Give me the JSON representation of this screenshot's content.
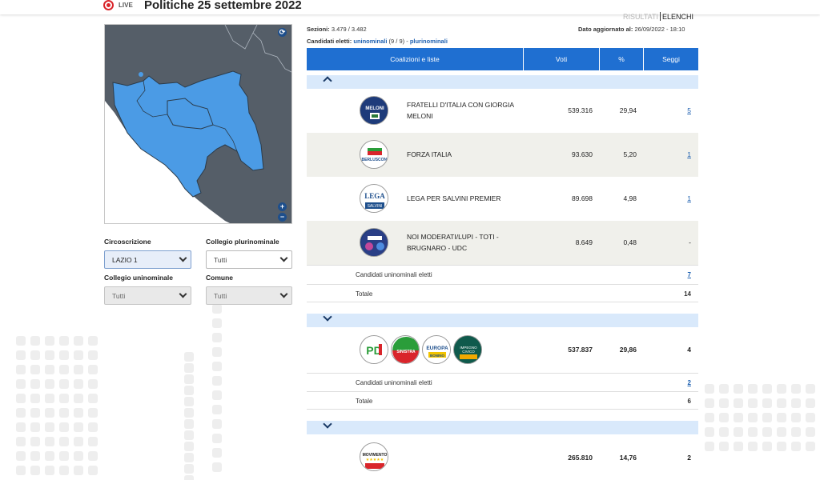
{
  "header": {
    "live_label": "LIVE",
    "title": "Politiche 25 settembre 2022"
  },
  "tabs": {
    "results": "RISULTATI",
    "lists": "ELENCHI"
  },
  "meta": {
    "sezioni_label": "Sezioni:",
    "sezioni_value": "3.479 / 3.482",
    "updated_label": "Dato aggiornato al:",
    "updated_value": "26/09/2022 - 18:10",
    "elected_label": "Candidati eletti:",
    "uninominali": "uninominali",
    "uninominali_count": "(9 / 9) -",
    "plurinominali": "plurinominali"
  },
  "filters": {
    "circoscrizione_label": "Circoscrizione",
    "circoscrizione_value": "LAZIO 1",
    "plurinominale_label": "Collegio plurinominale",
    "plurinominale_value": "Tutti",
    "uninominale_label": "Collegio uninominale",
    "uninominale_value": "Tutti",
    "comune_label": "Comune",
    "comune_value": "Tutti"
  },
  "table": {
    "headers": [
      "Coalizioni e liste",
      "Voti",
      "%",
      "Seggi"
    ],
    "groups": [
      {
        "expanded": true,
        "rows": [
          {
            "name": "FRATELLI D'ITALIA CON GIORGIA MELONI",
            "logo": "fdi-logo",
            "voti": "539.316",
            "pct": "29,94",
            "seggi": "5"
          },
          {
            "name": "FORZA ITALIA",
            "logo": "forza-italia-logo",
            "voti": "93.630",
            "pct": "5,20",
            "seggi": "1"
          },
          {
            "name": "LEGA PER SALVINI PREMIER",
            "logo": "lega-logo",
            "voti": "89.698",
            "pct": "4,98",
            "seggi": "1"
          },
          {
            "name": "NOI MODERATI/LUPI - TOTI - BRUGNARO - UDC",
            "logo": "noi-moderati-logo",
            "voti": "8.649",
            "pct": "0,48",
            "seggi": "-"
          }
        ],
        "uninominali_label": "Candidati uninominali eletti",
        "uninominali_value": "7",
        "totale_label": "Totale",
        "totale_value": "14"
      },
      {
        "expanded": false,
        "voti": "537.837",
        "pct": "29,86",
        "seggi": "4",
        "logos": [
          "pd-logo",
          "verdi-sinistra-logo",
          "piu-europa-logo",
          "impegno-civico-logo"
        ],
        "uninominali_label": "Candidati uninominali eletti",
        "uninominali_value": "2",
        "totale_label": "Totale",
        "totale_value": "6"
      },
      {
        "expanded": false,
        "voti": "265.810",
        "pct": "14,76",
        "seggi": "2",
        "logos": [
          "m5s-logo"
        ]
      }
    ]
  },
  "colors": {
    "accent": "#1f6fd1",
    "group_bar": "#d9e9fb",
    "map_selected": "#4b9be5",
    "map_other": "#555e68"
  }
}
